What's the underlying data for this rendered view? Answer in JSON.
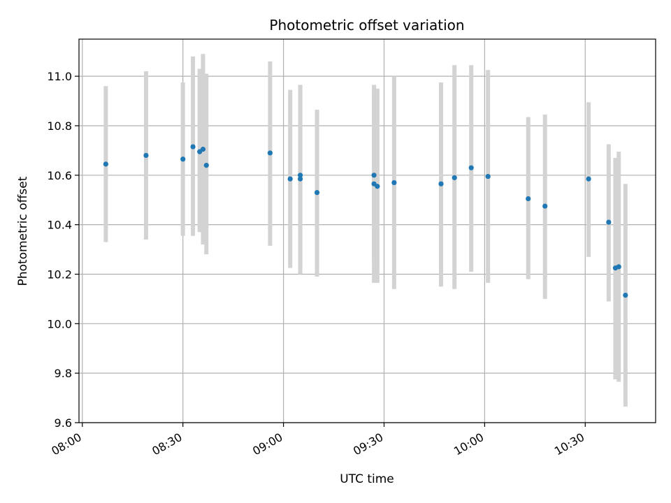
{
  "chart_data": {
    "type": "scatter",
    "title": "Photometric offset variation",
    "xlabel": "UTC time",
    "ylabel": "Photometric offset",
    "x_axis_type": "time",
    "xlim": [
      "07:59",
      "10:51"
    ],
    "ylim": [
      9.6,
      11.15
    ],
    "xticks": [
      "08:00",
      "08:30",
      "09:00",
      "09:30",
      "10:00",
      "10:30"
    ],
    "yticks": [
      "9.6",
      "9.8",
      "10.0",
      "10.2",
      "10.4",
      "10.6",
      "10.8",
      "11.0"
    ],
    "grid": true,
    "point_color": "#1f77b4",
    "errorbar_color": "#d3d3d3",
    "points": [
      {
        "x": "08:07",
        "y": 10.645,
        "low": 10.33,
        "high": 10.96
      },
      {
        "x": "08:19",
        "y": 10.68,
        "low": 10.34,
        "high": 11.02
      },
      {
        "x": "08:30",
        "y": 10.665,
        "low": 10.355,
        "high": 10.975
      },
      {
        "x": "08:33",
        "y": 10.715,
        "low": 10.355,
        "high": 11.08
      },
      {
        "x": "08:35",
        "y": 10.695,
        "low": 10.37,
        "high": 11.03
      },
      {
        "x": "08:36",
        "y": 10.705,
        "low": 10.32,
        "high": 11.09
      },
      {
        "x": "08:37",
        "y": 10.64,
        "low": 10.28,
        "high": 11.01
      },
      {
        "x": "08:56",
        "y": 10.69,
        "low": 10.315,
        "high": 11.06
      },
      {
        "x": "09:02",
        "y": 10.585,
        "low": 10.225,
        "high": 10.945
      },
      {
        "x": "09:05",
        "y": 10.6,
        "low": 10.23,
        "high": 10.965
      },
      {
        "x": "09:05",
        "y": 10.585,
        "low": 10.2,
        "high": 10.965
      },
      {
        "x": "09:10",
        "y": 10.53,
        "low": 10.19,
        "high": 10.865
      },
      {
        "x": "09:27",
        "y": 10.6,
        "low": 10.26,
        "high": 10.94
      },
      {
        "x": "09:27",
        "y": 10.565,
        "low": 10.165,
        "high": 10.965
      },
      {
        "x": "09:28",
        "y": 10.555,
        "low": 10.165,
        "high": 10.95
      },
      {
        "x": "09:33",
        "y": 10.57,
        "low": 10.14,
        "high": 11.0
      },
      {
        "x": "09:47",
        "y": 10.565,
        "low": 10.15,
        "high": 10.975
      },
      {
        "x": "09:51",
        "y": 10.59,
        "low": 10.14,
        "high": 11.045
      },
      {
        "x": "09:56",
        "y": 10.63,
        "low": 10.21,
        "high": 11.045
      },
      {
        "x": "10:01",
        "y": 10.595,
        "low": 10.165,
        "high": 11.025
      },
      {
        "x": "10:13",
        "y": 10.505,
        "low": 10.18,
        "high": 10.835
      },
      {
        "x": "10:18",
        "y": 10.475,
        "low": 10.1,
        "high": 10.845
      },
      {
        "x": "10:31",
        "y": 10.585,
        "low": 10.27,
        "high": 10.895
      },
      {
        "x": "10:37",
        "y": 10.41,
        "low": 10.09,
        "high": 10.725
      },
      {
        "x": "10:39",
        "y": 10.225,
        "low": 9.775,
        "high": 10.67
      },
      {
        "x": "10:40",
        "y": 10.23,
        "low": 9.765,
        "high": 10.695
      },
      {
        "x": "10:42",
        "y": 10.115,
        "low": 9.665,
        "high": 10.565
      }
    ]
  }
}
